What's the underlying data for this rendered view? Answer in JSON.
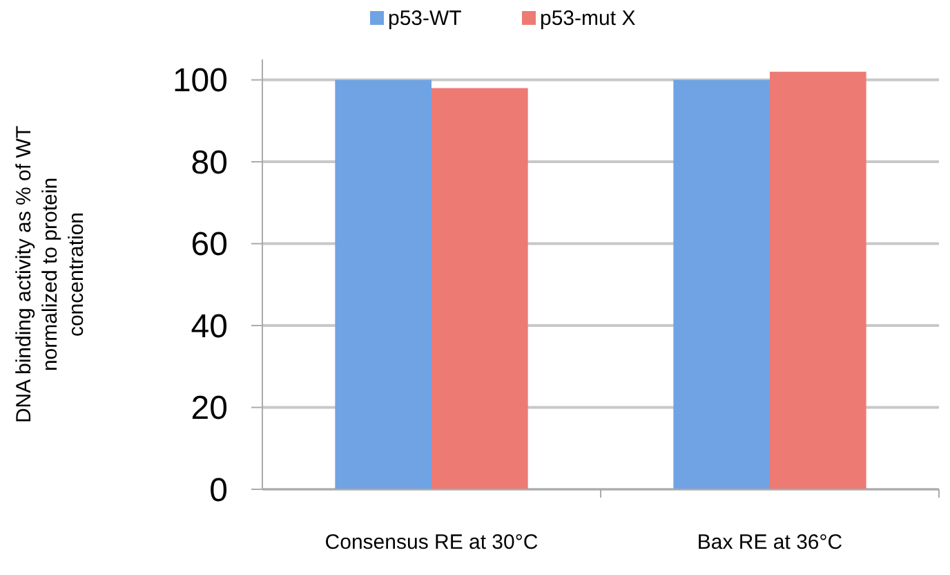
{
  "chart_data": {
    "type": "bar",
    "ylabel": "DNA binding activity as % of WT normalized to protein concentration",
    "categories": [
      "Consensus RE at 30°C",
      "Bax RE at 36°C"
    ],
    "series": [
      {
        "name": "p53-WT",
        "color": "#6fa3e4",
        "values": [
          100,
          100
        ]
      },
      {
        "name": "p53-mut X",
        "color": "#ee7a74",
        "values": [
          98,
          102
        ]
      }
    ],
    "ylim": [
      0,
      105
    ],
    "yticks": [
      0,
      20,
      40,
      60,
      80,
      100
    ],
    "grid": "y",
    "legend": "top"
  }
}
